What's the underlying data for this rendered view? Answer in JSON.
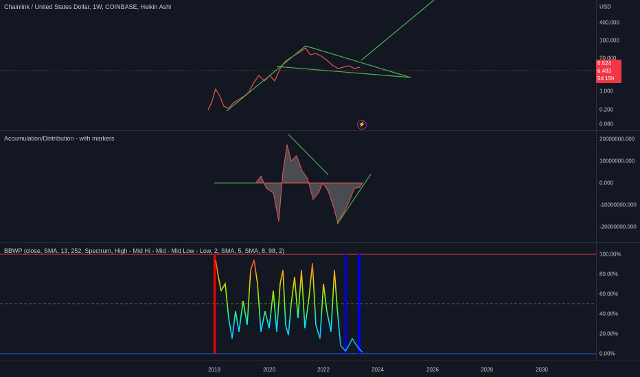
{
  "main": {
    "title": "Chainlink / United States Dollar, 1W, COINBASE, Heikin Ashi",
    "currency": "USD",
    "ticks": [
      "400.000",
      "100.000",
      "20.000",
      "6.524",
      "6.483",
      "1.000",
      "0.200",
      "0.060"
    ],
    "last_price": "6.524",
    "close_price": "6.483",
    "countdown": "5d 15h",
    "flash_icon": "lightning-icon"
  },
  "ad": {
    "title": "Accumulation/Distribution - with markers",
    "ticks": [
      "20000000.000",
      "10000000.000",
      "0.000",
      "-10000000.000",
      "-20000000.000"
    ]
  },
  "bbwp": {
    "title": "BBWP (close, SMA, 13, 252, Spectrum, High - Mid Hi - Mid - Mid Low - Low, 2, SMA, 5, SMA, 8, 98, 2)",
    "ticks": [
      "100.00%",
      "80.00%",
      "60.00%",
      "40.00%",
      "20.00%",
      "0.00%"
    ]
  },
  "time_axis": [
    "2018",
    "2020",
    "2022",
    "2024",
    "2026",
    "2028",
    "2030"
  ],
  "colors": {
    "bg": "#131722",
    "trend": "#4caf50",
    "up": "#26a69a",
    "down": "#ef5350",
    "ad_line": "#4caf50",
    "extreme_high": "#ff0000",
    "extreme_low": "#0000ff"
  }
}
